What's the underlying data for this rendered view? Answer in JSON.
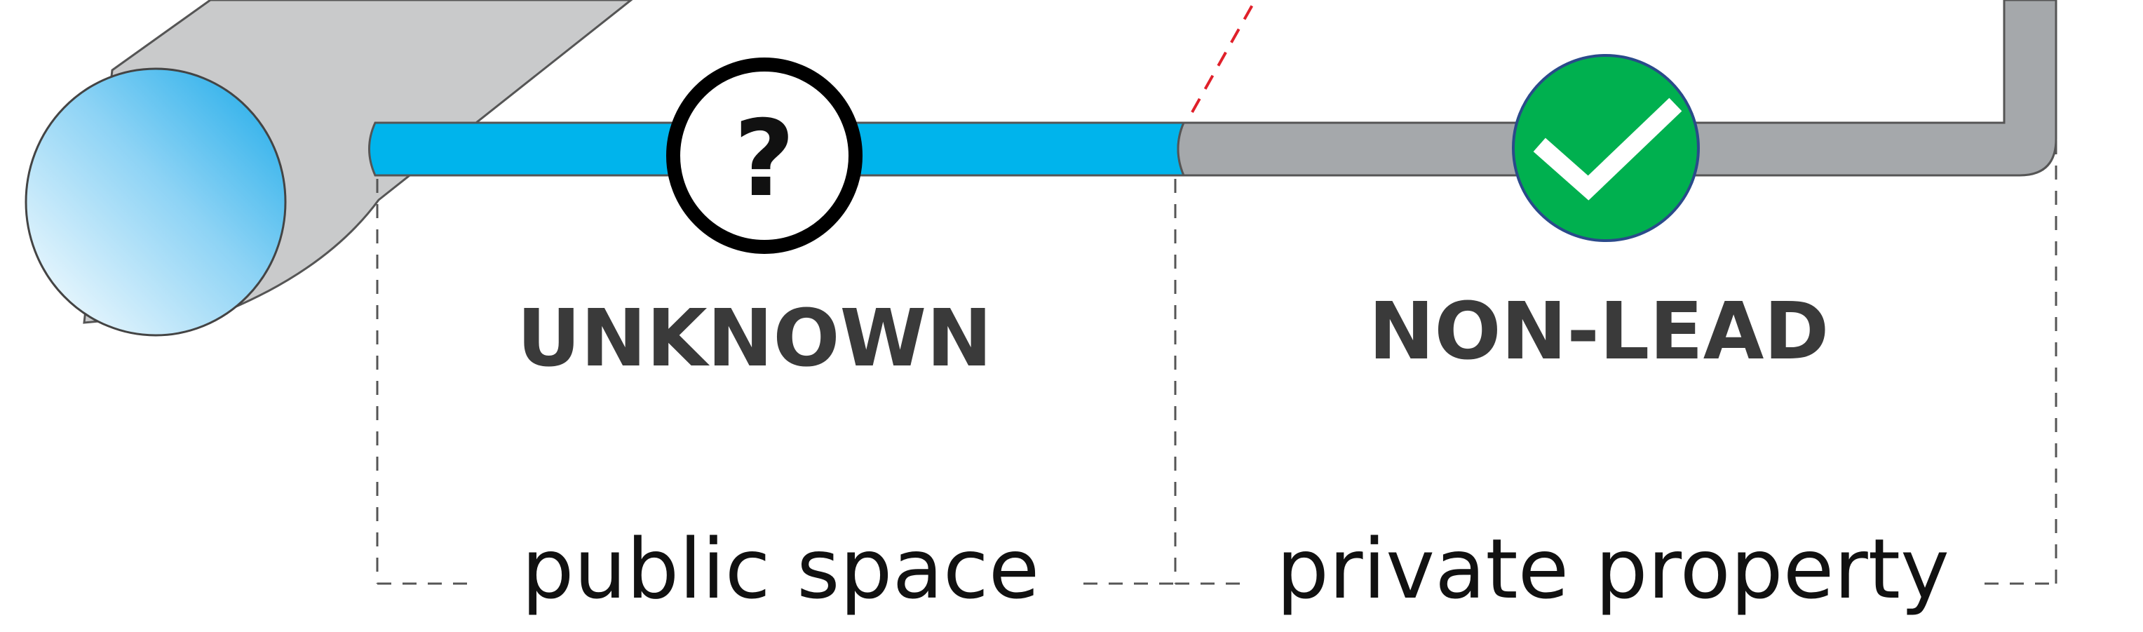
{
  "diagram": {
    "segments": [
      {
        "status": "UNKNOWN",
        "status_icon": "question-mark-icon",
        "zone": "public space",
        "pipe_color": "#00b4ec"
      },
      {
        "status": "NON-LEAD",
        "status_icon": "checkmark-icon",
        "zone": "private property",
        "pipe_color": "#a5a8ab"
      }
    ],
    "question_mark": "?",
    "colors": {
      "water_main": "#c9cacb",
      "water_main_face": "#42b9ee",
      "unknown_pipe": "#00b4ec",
      "private_pipe": "#a5a8ab",
      "check_circle": "#00b04f",
      "check_circle_border": "#2a4a8a",
      "boundary_dash": "#e0202a",
      "bracket_lines": "#555555",
      "label_text": "#3a3a3a"
    }
  }
}
